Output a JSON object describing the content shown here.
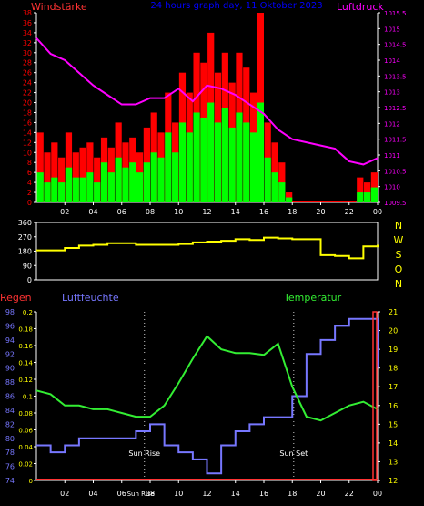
{
  "header": {
    "left": "Windstärke",
    "center": "24 hours graph day, 11 Oktober 2023",
    "right": "Luftdruck"
  },
  "hour_ticks": [
    "02",
    "04",
    "06",
    "08",
    "10",
    "12",
    "14",
    "16",
    "18",
    "20",
    "22",
    "00"
  ],
  "compass_labels": [
    "N",
    "W",
    "S",
    "O",
    "N"
  ],
  "lower_labels": {
    "regen": "Regen",
    "luftfeuchte": "Luftfeuchte",
    "temperatur": "Temperatur"
  },
  "sun_labels": {
    "sunrise": "Sun Rise",
    "sunset": "Sun Set",
    "bottom_marker": "Sun Rise"
  },
  "colors": {
    "wind_max": "#ff0000",
    "wind_avg": "#00ff00",
    "pressure": "#ff00ff",
    "direction": "#ffff00",
    "humidity": "#7777ff",
    "temperature": "#33ee33",
    "rain": "#ff3333",
    "axis": "#ffffff",
    "rain_axis_text": "#ffff00"
  },
  "chart_data": [
    {
      "type": "bar",
      "title": "24 hours graph day, 11 Oktober 2023",
      "x_unit": "hour of day (01:00 .. 24:00)",
      "xlim": [
        0,
        24
      ],
      "ylabel_left": "Windstärke",
      "ylim_left": [
        0,
        38
      ],
      "yticks_left": [
        "0",
        "2",
        "4",
        "6",
        "8",
        "10",
        "12",
        "14",
        "16",
        "18",
        "20",
        "22",
        "24",
        "26",
        "28",
        "30",
        "32",
        "34",
        "36",
        "38"
      ],
      "ylabel_right": "Luftdruck",
      "ylim_right": [
        1009.5,
        1015.5
      ],
      "yticks_right": [
        "1009.5",
        "1010",
        "1010.5",
        "1011",
        "1011.5",
        "1012",
        "1012.5",
        "1013",
        "1013.5",
        "1014",
        "1014.5",
        "1015",
        "1015.5"
      ],
      "series": [
        {
          "name": "Windstärke",
          "role": "gust",
          "type": "bar",
          "hours": [
            0.5,
            1,
            1.5,
            2,
            2.5,
            3,
            3.5,
            4,
            4.5,
            5,
            5.5,
            6,
            6.5,
            7,
            7.5,
            8,
            8.5,
            9,
            9.5,
            10,
            10.5,
            11,
            11.5,
            12,
            12.5,
            13,
            13.5,
            14,
            14.5,
            15,
            15.5,
            16,
            16.5,
            17,
            17.5,
            18,
            18.5,
            19,
            19.5,
            20,
            20.5,
            21,
            21.5,
            22,
            22.5,
            23,
            23.5,
            24
          ],
          "values": [
            14,
            10,
            12,
            9,
            14,
            10,
            11,
            12,
            9,
            13,
            11,
            16,
            12,
            13,
            10,
            15,
            18,
            14,
            22,
            16,
            26,
            22,
            30,
            28,
            34,
            26,
            30,
            24,
            30,
            27,
            22,
            38,
            16,
            12,
            8,
            2,
            0,
            0,
            0,
            0,
            0,
            0,
            0,
            0,
            0,
            5,
            4,
            6
          ]
        },
        {
          "name": "",
          "role": "mean",
          "type": "bar",
          "hours": [
            0.5,
            1,
            1.5,
            2,
            2.5,
            3,
            3.5,
            4,
            4.5,
            5,
            5.5,
            6,
            6.5,
            7,
            7.5,
            8,
            8.5,
            9,
            9.5,
            10,
            10.5,
            11,
            11.5,
            12,
            12.5,
            13,
            13.5,
            14,
            14.5,
            15,
            15.5,
            16,
            16.5,
            17,
            17.5,
            18,
            18.5,
            19,
            19.5,
            20,
            20.5,
            21,
            21.5,
            22,
            22.5,
            23,
            23.5,
            24
          ],
          "values": [
            6,
            4,
            5,
            4,
            7,
            5,
            5,
            6,
            4,
            8,
            6,
            9,
            7,
            8,
            6,
            8,
            10,
            9,
            14,
            10,
            16,
            14,
            18,
            17,
            20,
            16,
            19,
            15,
            18,
            16,
            14,
            20,
            9,
            6,
            4,
            1,
            0,
            0,
            0,
            0,
            0,
            0,
            0,
            0,
            0,
            2,
            2,
            3
          ]
        },
        {
          "name": "Luftdruck",
          "type": "line",
          "hours": [
            0,
            1,
            2,
            3,
            4,
            5,
            6,
            7,
            8,
            9,
            10,
            11,
            12,
            13,
            14,
            15,
            16,
            17,
            18,
            19,
            20,
            21,
            22,
            23,
            24
          ],
          "values": [
            1014.7,
            1014.2,
            1014.0,
            1013.6,
            1013.2,
            1012.9,
            1012.6,
            1012.6,
            1012.8,
            1012.8,
            1013.1,
            1012.7,
            1013.2,
            1013.1,
            1012.9,
            1012.6,
            1012.3,
            1011.8,
            1011.5,
            1011.4,
            1011.3,
            1011.2,
            1010.8,
            1010.7,
            1010.9
          ]
        }
      ]
    },
    {
      "type": "line",
      "xlim": [
        0,
        24
      ],
      "ylim": [
        0,
        360
      ],
      "yticks": [
        "0",
        "90",
        "180",
        "270",
        "360"
      ],
      "y_right_labels": [
        "N",
        "W",
        "S",
        "O",
        "N"
      ],
      "series": [
        {
          "name": "",
          "hours": [
            0,
            1,
            2,
            3,
            4,
            5,
            6,
            7,
            8,
            9,
            10,
            11,
            12,
            13,
            14,
            15,
            16,
            17,
            18,
            19,
            20,
            21,
            22,
            23,
            24
          ],
          "values": [
            185,
            185,
            200,
            215,
            220,
            230,
            230,
            220,
            220,
            220,
            225,
            235,
            240,
            245,
            255,
            250,
            265,
            260,
            255,
            255,
            155,
            150,
            135,
            210,
            220
          ]
        }
      ]
    },
    {
      "type": "line",
      "xlim": [
        0,
        24
      ],
      "ylabel_rain": "Regen",
      "ylim_rain": [
        0,
        0.2
      ],
      "yticks_rain": [
        "0",
        "0.02",
        "0.04",
        "0.06",
        "0.08",
        "0.1",
        "0.12",
        "0.14",
        "0.16",
        "0.18",
        "0.2"
      ],
      "ylabel_humidity": "Luftfeuchte",
      "ylim_humidity": [
        74,
        98
      ],
      "yticks_humidity": [
        "74",
        "76",
        "78",
        "80",
        "82",
        "84",
        "86",
        "88",
        "90",
        "92",
        "94",
        "96",
        "98"
      ],
      "ylabel_temperature": "Temperatur",
      "ylim_temperature": [
        12,
        21
      ],
      "yticks_temperature": [
        "12",
        "13",
        "14",
        "15",
        "16",
        "17",
        "18",
        "19",
        "20",
        "21"
      ],
      "series": [
        {
          "name": "Luftfeuchte",
          "hours": [
            0,
            1,
            2,
            3,
            4,
            5,
            6,
            7,
            8,
            9,
            10,
            11,
            12,
            13,
            14,
            15,
            16,
            17,
            18,
            19,
            20,
            21,
            22,
            23,
            24
          ],
          "values": [
            79,
            78,
            79,
            80,
            80,
            80,
            80,
            81,
            82,
            79,
            78,
            77,
            75,
            79,
            81,
            82,
            83,
            83,
            86,
            92,
            94,
            96,
            97,
            97,
            90
          ]
        },
        {
          "name": "Temperatur",
          "hours": [
            0,
            1,
            2,
            3,
            4,
            5,
            6,
            7,
            8,
            9,
            10,
            11,
            12,
            13,
            14,
            15,
            16,
            17,
            18,
            19,
            20,
            21,
            22,
            23,
            24
          ],
          "values": [
            16.8,
            16.6,
            16.0,
            16.0,
            15.8,
            15.8,
            15.6,
            15.4,
            15.4,
            16.0,
            17.2,
            18.5,
            19.7,
            19.0,
            18.8,
            18.8,
            18.7,
            19.3,
            17.0,
            15.4,
            15.2,
            15.6,
            16.0,
            16.2,
            15.8
          ]
        },
        {
          "name": "Regen",
          "hours": [
            0,
            24
          ],
          "values": [
            0,
            0
          ]
        }
      ],
      "sunrise_hour": 7.6,
      "sunset_hour": 18.1
    }
  ]
}
